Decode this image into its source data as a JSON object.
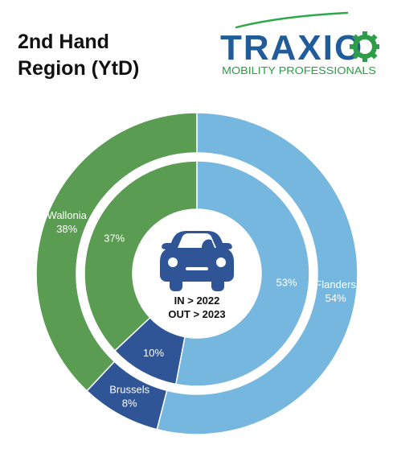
{
  "title_line1": "2nd Hand",
  "title_line2": "Region (YtD)",
  "logo": {
    "brand": "TRAXIO",
    "tagline": "MOBILITY PROFESSIONALS",
    "colors": {
      "brand_text": "#1f5c99",
      "tagline_text": "#2e9c48",
      "swoosh": "#2ea84a"
    }
  },
  "center": {
    "icon": "car-icon",
    "line1": "IN > 2022",
    "line2": "OUT > 2023"
  },
  "colors": {
    "Flanders": "#76b7e0",
    "Brussels": "#2f5597",
    "Wallonia": "#5a9c52"
  },
  "chart_data": {
    "type": "donut",
    "rings": [
      {
        "ring": "inner",
        "label": "IN > 2022",
        "categories": [
          "Flanders",
          "Brussels",
          "Wallonia"
        ],
        "values": [
          53,
          10,
          37
        ],
        "display": [
          "53%",
          "10%",
          "37%"
        ]
      },
      {
        "ring": "outer",
        "label": "OUT > 2023",
        "categories": [
          "Flanders",
          "Brussels",
          "Wallonia"
        ],
        "values": [
          54,
          8,
          38
        ],
        "display": [
          "54%",
          "8%",
          "38%"
        ]
      }
    ],
    "category_labels": [
      "Flanders",
      "Brussels",
      "Wallonia"
    ],
    "unit": "%"
  }
}
